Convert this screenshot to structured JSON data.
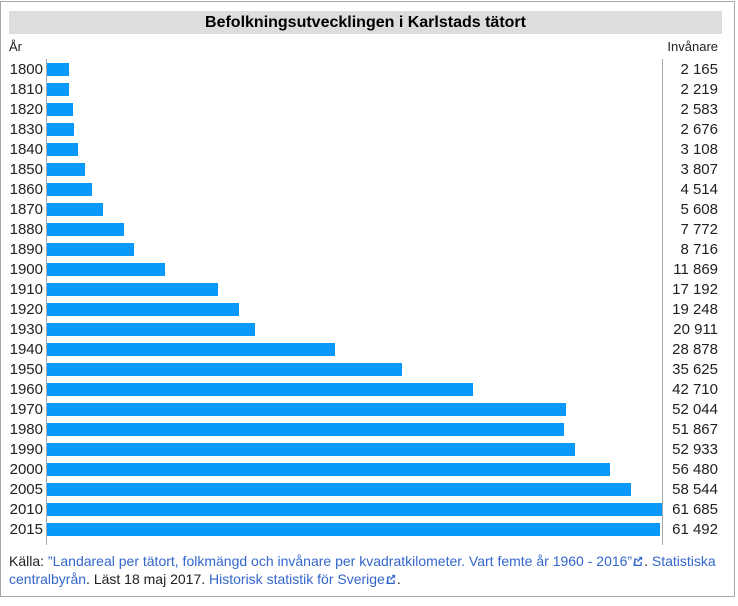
{
  "title": "Befolkningsutvecklingen i Karlstads tätort",
  "axis_header": {
    "left_label": "År",
    "right_label": "Invånare"
  },
  "chart_data": {
    "type": "bar",
    "orientation": "horizontal",
    "title": "Befolkningsutvecklingen i Karlstads tätort",
    "ylabel": "År",
    "xlabel": "Invånare",
    "xlim": [
      0,
      61685
    ],
    "grid": false,
    "categories": [
      "1800",
      "1810",
      "1820",
      "1830",
      "1840",
      "1850",
      "1860",
      "1870",
      "1880",
      "1890",
      "1900",
      "1910",
      "1920",
      "1930",
      "1940",
      "1950",
      "1960",
      "1970",
      "1980",
      "1990",
      "2000",
      "2005",
      "2010",
      "2015"
    ],
    "values": [
      2165,
      2219,
      2583,
      2676,
      3108,
      3807,
      4514,
      5608,
      7772,
      8716,
      11869,
      17192,
      19248,
      20911,
      28878,
      35625,
      42710,
      52044,
      51867,
      52933,
      56480,
      58544,
      61685,
      61492
    ],
    "value_labels": [
      "2 165",
      "2 219",
      "2 583",
      "2 676",
      "3 108",
      "3 807",
      "4 514",
      "5 608",
      "7 772",
      "8 716",
      "11 869",
      "17 192",
      "19 248",
      "20 911",
      "28 878",
      "35 625",
      "42 710",
      "52 044",
      "51 867",
      "52 933",
      "56 480",
      "58 544",
      "61 685",
      "61 492"
    ]
  },
  "footer": {
    "kalla_label": "Källa: ",
    "source_link": "”Landareal per tätort, folkmängd och invånare per kvadratkilometer. Vart femte år 1960 - 2016”",
    "after_source": ". ",
    "publisher_link": "Statistiska centralbyrån",
    "read_text": ". Läst 18 maj 2017. ",
    "history_link": "Historisk statistik för Sverige",
    "period": "."
  },
  "colors": {
    "bar": "#0999FA",
    "link": "#3366CC",
    "title_bg": "#DDDDDD",
    "frame_border": "#A7A7A7",
    "axis_line": "#AAAAAA",
    "text": "#202122"
  }
}
